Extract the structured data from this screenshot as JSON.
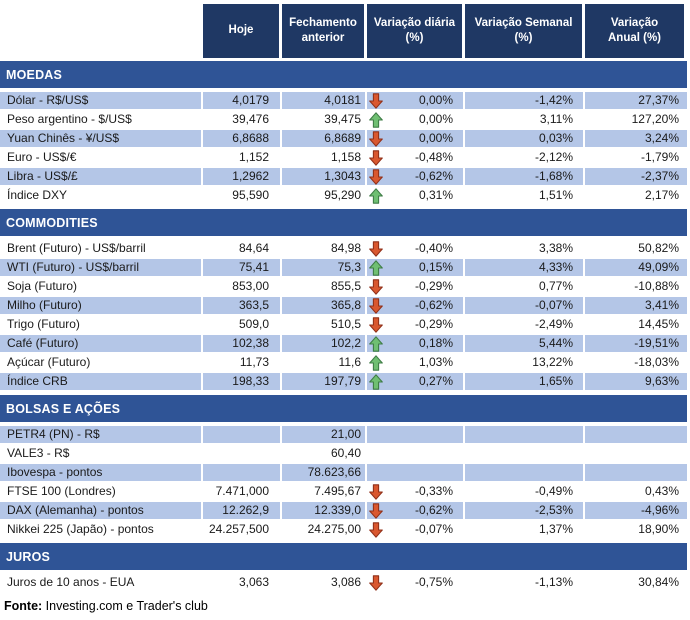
{
  "header": {
    "columns": [
      "Hoje",
      "Fechamento\nanterior",
      "Variação diária\n(%)",
      "Variação Semanal\n(%)",
      "Variação\nAnual (%)"
    ]
  },
  "sections": [
    {
      "title": "MOEDAS",
      "first_row_shaded": true,
      "rows": [
        {
          "label": "Dólar - R$/US$",
          "hoje": "4,0179",
          "fechamento": "4,0181",
          "arrow": "down",
          "diaria": "0,00%",
          "semanal": "-1,42%",
          "anual": "27,37%"
        },
        {
          "label": "Peso argentino - $/US$",
          "hoje": "39,476",
          "fechamento": "39,475",
          "arrow": "up",
          "diaria": "0,00%",
          "semanal": "3,11%",
          "anual": "127,20%"
        },
        {
          "label": "Yuan Chinês - ¥/US$",
          "hoje": "6,8688",
          "fechamento": "6,8689",
          "arrow": "down",
          "diaria": "0,00%",
          "semanal": "0,03%",
          "anual": "3,24%"
        },
        {
          "label": "Euro - US$/€",
          "hoje": "1,152",
          "fechamento": "1,158",
          "arrow": "down",
          "diaria": "-0,48%",
          "semanal": "-2,12%",
          "anual": "-1,79%"
        },
        {
          "label": "Libra - US$/£",
          "hoje": "1,2962",
          "fechamento": "1,3043",
          "arrow": "down",
          "diaria": "-0,62%",
          "semanal": "-1,68%",
          "anual": "-2,37%"
        },
        {
          "label": "Índice DXY",
          "hoje": "95,590",
          "fechamento": "95,290",
          "arrow": "up",
          "diaria": "0,31%",
          "semanal": "1,51%",
          "anual": "2,17%"
        }
      ]
    },
    {
      "title": "COMMODITIES",
      "first_row_shaded": false,
      "rows": [
        {
          "label": "Brent (Futuro) - US$/barril",
          "hoje": "84,64",
          "fechamento": "84,98",
          "arrow": "down",
          "diaria": "-0,40%",
          "semanal": "3,38%",
          "anual": "50,82%"
        },
        {
          "label": "WTI (Futuro) - US$/barril",
          "hoje": "75,41",
          "fechamento": "75,3",
          "arrow": "up",
          "diaria": "0,15%",
          "semanal": "4,33%",
          "anual": "49,09%"
        },
        {
          "label": "Soja (Futuro)",
          "hoje": "853,00",
          "fechamento": "855,5",
          "arrow": "down",
          "diaria": "-0,29%",
          "semanal": "0,77%",
          "anual": "-10,88%"
        },
        {
          "label": "Milho (Futuro)",
          "hoje": "363,5",
          "fechamento": "365,8",
          "arrow": "down",
          "diaria": "-0,62%",
          "semanal": "-0,07%",
          "anual": "3,41%"
        },
        {
          "label": "Trigo (Futuro)",
          "hoje": "509,0",
          "fechamento": "510,5",
          "arrow": "down",
          "diaria": "-0,29%",
          "semanal": "-2,49%",
          "anual": "14,45%"
        },
        {
          "label": "Café (Futuro)",
          "hoje": "102,38",
          "fechamento": "102,2",
          "arrow": "up",
          "diaria": "0,18%",
          "semanal": "5,44%",
          "anual": "-19,51%"
        },
        {
          "label": "Açúcar (Futuro)",
          "hoje": "11,73",
          "fechamento": "11,6",
          "arrow": "up",
          "diaria": "1,03%",
          "semanal": "13,22%",
          "anual": "-18,03%"
        },
        {
          "label": "Índice CRB",
          "hoje": "198,33",
          "fechamento": "197,79",
          "arrow": "up",
          "diaria": "0,27%",
          "semanal": "1,65%",
          "anual": "9,63%"
        }
      ]
    },
    {
      "title": "BOLSAS E AÇÕES",
      "first_row_shaded": true,
      "rows": [
        {
          "label": "PETR4 (PN) - R$",
          "hoje": "",
          "fechamento": "21,00",
          "arrow": null,
          "diaria": "",
          "semanal": "",
          "anual": ""
        },
        {
          "label": "VALE3 - R$",
          "hoje": "",
          "fechamento": "60,40",
          "arrow": null,
          "diaria": "",
          "semanal": "",
          "anual": ""
        },
        {
          "label": "Ibovespa - pontos",
          "hoje": "",
          "fechamento": "78.623,66",
          "arrow": null,
          "diaria": "",
          "semanal": "",
          "anual": ""
        },
        {
          "label": "FTSE 100 (Londres)",
          "hoje": "7.471,000",
          "fechamento": "7.495,67",
          "arrow": "down",
          "diaria": "-0,33%",
          "semanal": "-0,49%",
          "anual": "0,43%"
        },
        {
          "label": "DAX (Alemanha) - pontos",
          "hoje": "12.262,9",
          "fechamento": "12.339,0",
          "arrow": "down",
          "diaria": "-0,62%",
          "semanal": "-2,53%",
          "anual": "-4,96%"
        },
        {
          "label": "Nikkei 225 (Japão) - pontos",
          "hoje": "24.257,500",
          "fechamento": "24.275,00",
          "arrow": "down",
          "diaria": "-0,07%",
          "semanal": "1,37%",
          "anual": "18,90%"
        }
      ]
    },
    {
      "title": "JUROS",
      "first_row_shaded": false,
      "rows": [
        {
          "label": "Juros de 10 anos - EUA",
          "hoje": "3,063",
          "fechamento": "3,086",
          "arrow": "down",
          "diaria": "-0,75%",
          "semanal": "-1,13%",
          "anual": "30,84%"
        }
      ]
    }
  ],
  "footer": {
    "label": "Fonte:",
    "text": " Investing.com e Trader's club"
  },
  "colors": {
    "header_bg": "#1F3864",
    "header_text": "#FFFFFF",
    "section_bg": "#2F5496",
    "row_shaded_bg": "#B4C6E7",
    "row_text": "#1A1A1A",
    "arrow_up_fill": "#6FBF72",
    "arrow_up_stroke": "#3E7C46",
    "arrow_down_fill": "#D9572F",
    "arrow_down_stroke": "#90301A"
  },
  "icons": {
    "up": "up-arrow-icon",
    "down": "down-arrow-icon"
  }
}
